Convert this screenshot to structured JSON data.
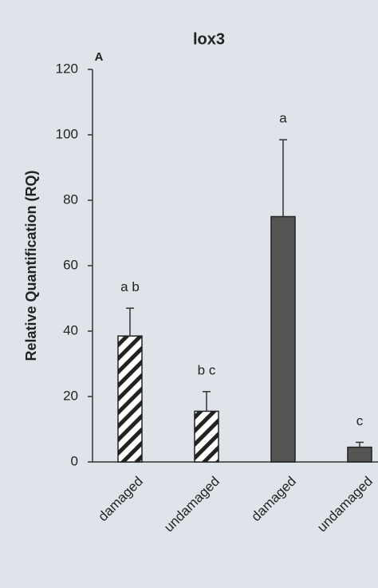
{
  "chart_data": {
    "type": "bar",
    "title": "lox3",
    "panel_label": "A",
    "y_label": "Relative Quantification (RQ)",
    "categories": [
      "damaged",
      "undamaged",
      "damaged",
      "undamaged"
    ],
    "values": [
      38.5,
      15.5,
      75,
      4.5
    ],
    "errors": [
      8.5,
      6,
      23.5,
      1.5
    ],
    "annotations": [
      "a b",
      "b c",
      "a",
      "c"
    ],
    "colors": [
      "#ffffff",
      "#ffffff",
      "#555555",
      "#555555"
    ],
    "hatch": [
      true,
      true,
      false,
      false
    ],
    "ylim": [
      0,
      120
    ],
    "yticks": [
      0,
      20,
      40,
      60,
      80,
      100,
      120
    ],
    "grid": false
  }
}
